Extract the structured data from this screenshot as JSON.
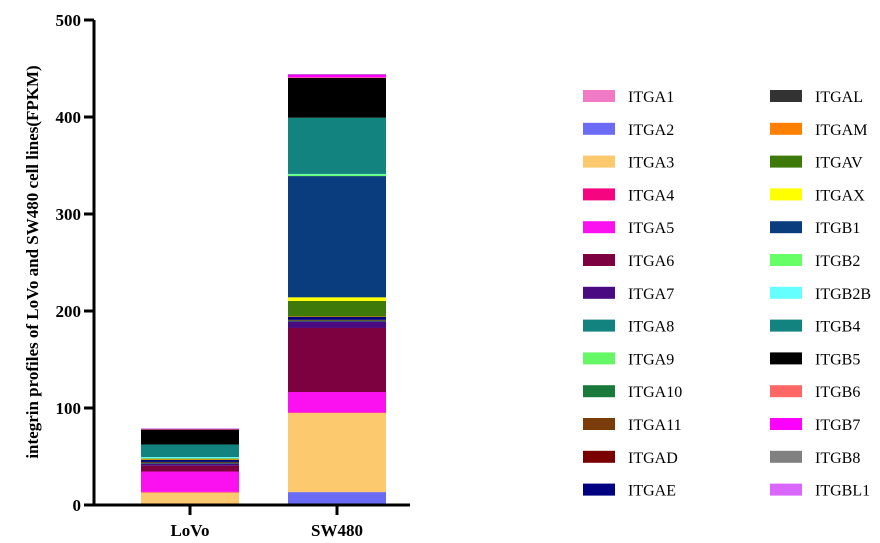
{
  "chart_data": {
    "type": "bar",
    "stacked": true,
    "ylabel": "integrin profiles of LoVo and SW480 cell  lines(FPKM)",
    "xlabel": "",
    "ylim": [
      0,
      500
    ],
    "y_ticks": [
      "0",
      "100",
      "200",
      "300",
      "400",
      "500"
    ],
    "categories": [
      "LoVo",
      "SW480"
    ],
    "legend_position": "right",
    "legend_columns": 2,
    "series": [
      {
        "name": "ITGA1",
        "color": "#f07ac6",
        "values": [
          0.2,
          0.3
        ]
      },
      {
        "name": "ITGA2",
        "color": "#6b6bf5",
        "values": [
          1.0,
          13.0
        ]
      },
      {
        "name": "ITGA3",
        "color": "#fcc96e",
        "values": [
          12.0,
          82.0
        ]
      },
      {
        "name": "ITGA4",
        "color": "#f5057f",
        "values": [
          0.3,
          0.2
        ]
      },
      {
        "name": "ITGA5",
        "color": "#fb10f0",
        "values": [
          21.0,
          21.0
        ]
      },
      {
        "name": "ITGA6",
        "color": "#7d0040",
        "values": [
          6.0,
          66.0
        ]
      },
      {
        "name": "ITGA7",
        "color": "#4a0a82",
        "values": [
          2.5,
          7.0
        ]
      },
      {
        "name": "ITGA8",
        "color": "#138380",
        "values": [
          0.3,
          0.3
        ]
      },
      {
        "name": "ITGA9",
        "color": "#66f766",
        "values": [
          0.3,
          0.3
        ]
      },
      {
        "name": "ITGA10",
        "color": "#1a7a3c",
        "values": [
          0.3,
          0.3
        ]
      },
      {
        "name": "ITGA11",
        "color": "#7a3d0a",
        "values": [
          0.3,
          0.3
        ]
      },
      {
        "name": "ITGAD",
        "color": "#7a0000",
        "values": [
          0.2,
          0.2
        ]
      },
      {
        "name": "ITGAE",
        "color": "#000080",
        "values": [
          2.0,
          3.0
        ]
      },
      {
        "name": "ITGAL",
        "color": "#333333",
        "values": [
          0.3,
          0.3
        ]
      },
      {
        "name": "ITGAM",
        "color": "#ff8000",
        "values": [
          0.2,
          0.2
        ]
      },
      {
        "name": "ITGAV",
        "color": "#3e7a0a",
        "values": [
          0.5,
          16.0
        ]
      },
      {
        "name": "ITGAX",
        "color": "#ffff00",
        "values": [
          0.3,
          3.7
        ]
      },
      {
        "name": "ITGB1",
        "color": "#0a3d7e",
        "values": [
          0.5,
          125.0
        ]
      },
      {
        "name": "ITGB2",
        "color": "#66ff66",
        "values": [
          0.2,
          2.0
        ]
      },
      {
        "name": "ITGB2B",
        "color": "#66ffff",
        "values": [
          1.0,
          0.2
        ]
      },
      {
        "name": "ITGB4",
        "color": "#138380",
        "values": [
          13.0,
          58.0
        ]
      },
      {
        "name": "ITGB5",
        "color": "#000000",
        "values": [
          15.5,
          41.0
        ]
      },
      {
        "name": "ITGB6",
        "color": "#ff6666",
        "values": [
          0.2,
          0.5
        ]
      },
      {
        "name": "ITGB7",
        "color": "#ff00ff",
        "values": [
          0.5,
          3.0
        ]
      },
      {
        "name": "ITGB8",
        "color": "#808080",
        "values": [
          0.2,
          0.2
        ]
      },
      {
        "name": "ITGBL1",
        "color": "#d966ff",
        "values": [
          0.2,
          0.3
        ]
      }
    ]
  }
}
